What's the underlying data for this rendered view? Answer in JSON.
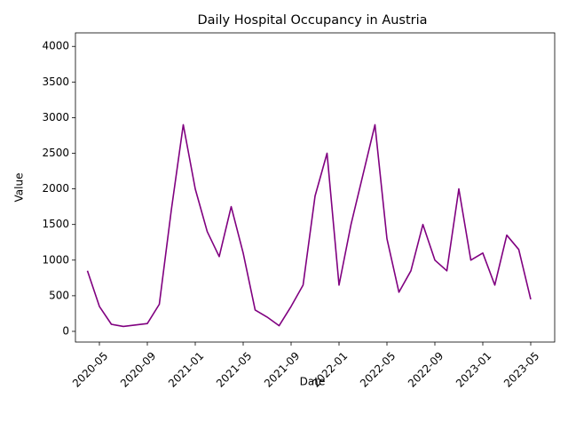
{
  "chart_data": {
    "type": "line",
    "title": "Daily Hospital Occupancy in Austria",
    "x_label": "Date",
    "y_label": "Value",
    "x": [
      "2020-04",
      "2020-05",
      "2020-06",
      "2020-07",
      "2020-08",
      "2020-09",
      "2020-10",
      "2020-11",
      "2020-12",
      "2021-01",
      "2021-02",
      "2021-03",
      "2021-04",
      "2021-05",
      "2021-06",
      "2021-07",
      "2021-08",
      "2021-09",
      "2021-10",
      "2021-11",
      "2021-12",
      "2022-01",
      "2022-02",
      "2022-03",
      "2022-04",
      "2022-05",
      "2022-06",
      "2022-07",
      "2022-08",
      "2022-09",
      "2022-10",
      "2022-11",
      "2022-12",
      "2023-01",
      "2023-02",
      "2023-03",
      "2023-04",
      "2023-05"
    ],
    "series": [
      {
        "name": "Value",
        "color": "#800080",
        "values": [
          850,
          350,
          100,
          70,
          90,
          110,
          380,
          1700,
          2900,
          2000,
          1400,
          1050,
          1750,
          1100,
          300,
          200,
          80,
          350,
          650,
          1900,
          2500,
          650,
          1500,
          2200,
          2900,
          1300,
          550,
          850,
          1500,
          1000,
          850,
          2000,
          1000,
          1100,
          650,
          1350,
          1150,
          450
        ]
      }
    ],
    "xlim": [
      "2020-03",
      "2023-07"
    ],
    "xticks": [
      "2020-05",
      "2020-09",
      "2021-01",
      "2021-05",
      "2021-09",
      "2022-01",
      "2022-05",
      "2022-09",
      "2023-01",
      "2023-05"
    ],
    "ylim": [
      -150,
      4190
    ],
    "yticks": [
      0,
      500,
      1000,
      1500,
      2000,
      2500,
      3000,
      3500,
      4000
    ],
    "grid": false
  }
}
